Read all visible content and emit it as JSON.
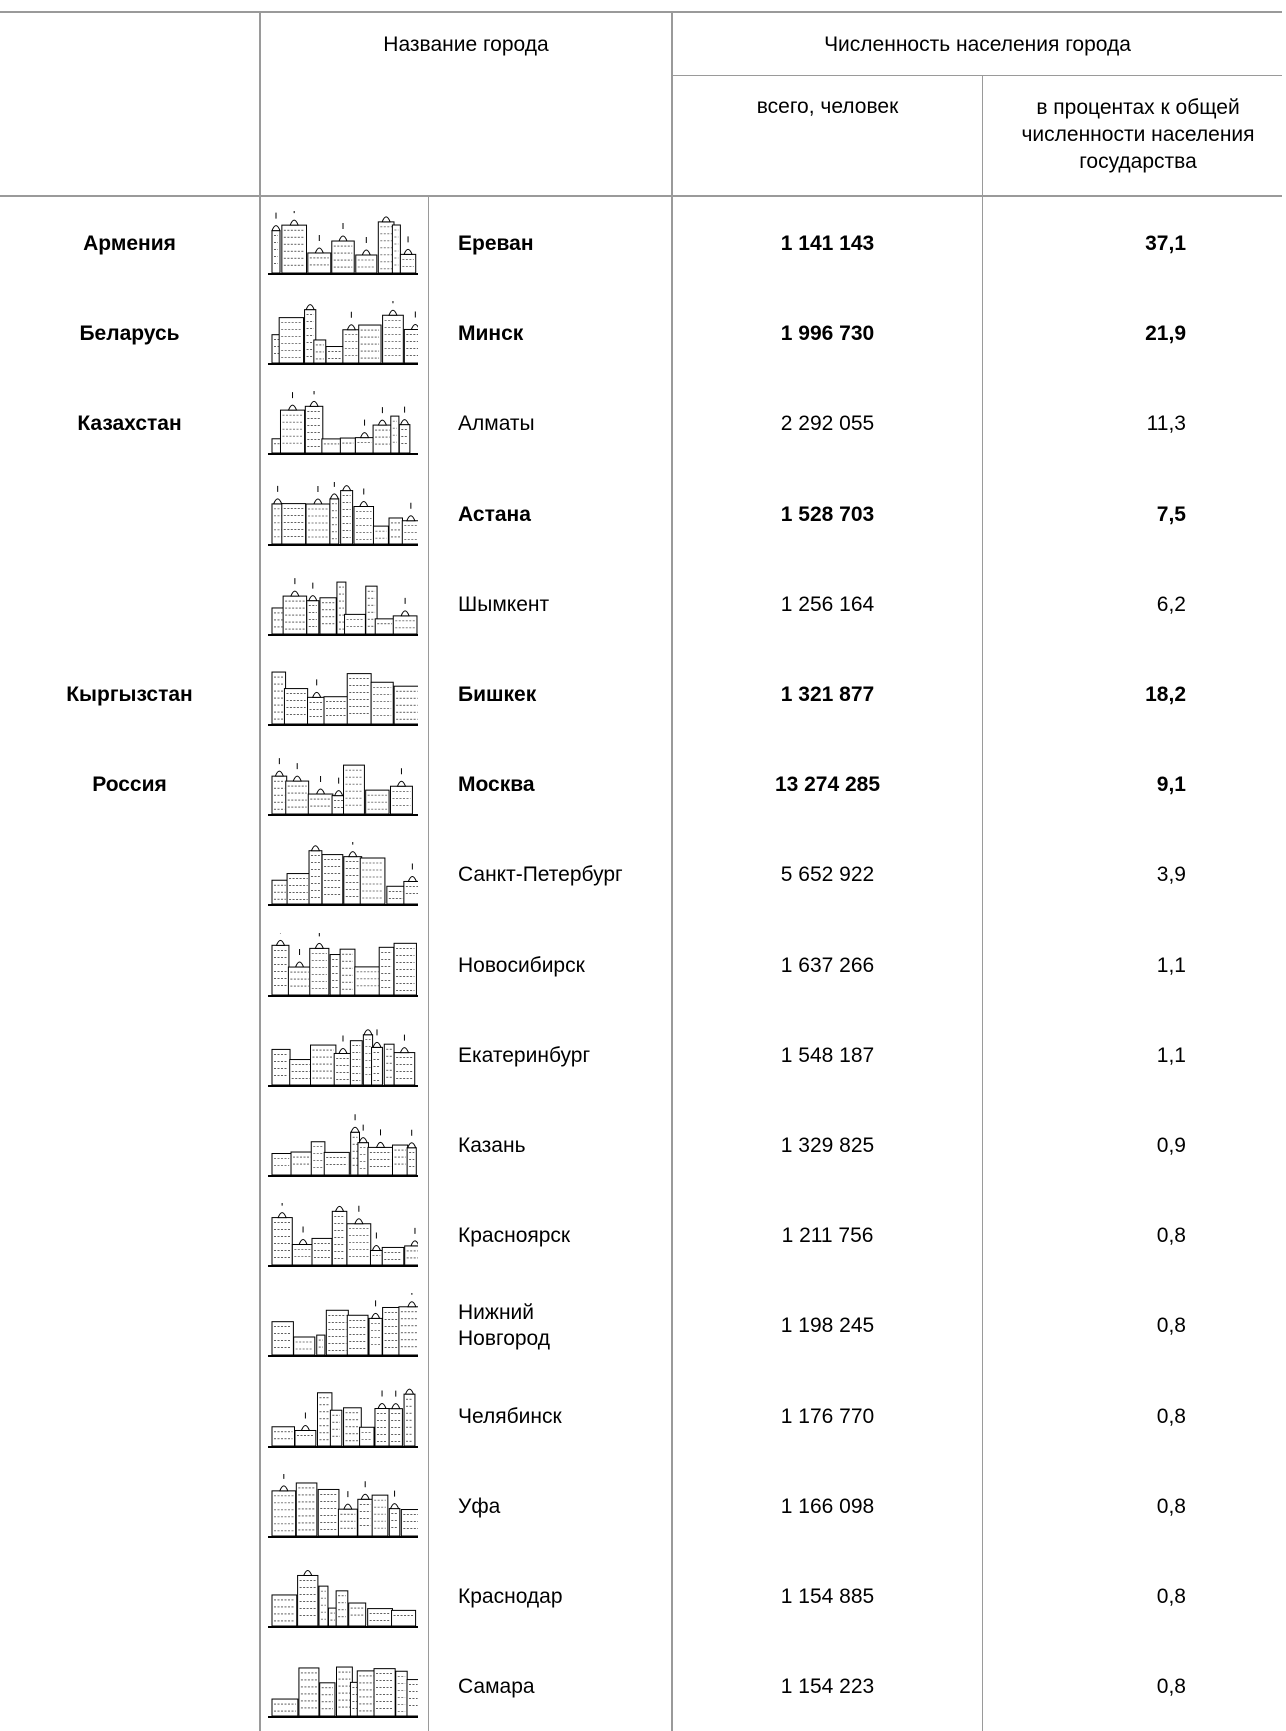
{
  "header": {
    "city_name": "Название города",
    "population": "Численность населения города",
    "total": "всего, человек",
    "percent": "в процентах к общей численности населения государства"
  },
  "table": {
    "rows": [
      {
        "country": "Армения",
        "city": "Ереван",
        "total": "1 141 143",
        "percent": "37,1",
        "bold": true
      },
      {
        "country": "Беларусь",
        "city": "Минск",
        "total": "1 996 730",
        "percent": "21,9",
        "bold": true
      },
      {
        "country": "Казахстан",
        "city": "Алматы",
        "total": "2 292 055",
        "percent": "11,3",
        "bold": false
      },
      {
        "city": "Астана",
        "total": "1 528 703",
        "percent": "7,5",
        "bold": true
      },
      {
        "city": "Шымкент",
        "total": "1 256 164",
        "percent": "6,2",
        "bold": false
      },
      {
        "country": "Кыргызстан",
        "city": "Бишкек",
        "total": "1 321 877",
        "percent": "18,2",
        "bold": true
      },
      {
        "country": "Россия",
        "city": "Москва",
        "total": "13 274 285",
        "percent": "9,1",
        "bold": true
      },
      {
        "city": "Санкт-Петербург",
        "total": "5 652 922",
        "percent": "3,9",
        "bold": false
      },
      {
        "city": "Новосибирск",
        "total": "1 637 266",
        "percent": "1,1",
        "bold": false
      },
      {
        "city": "Екатеринбург",
        "total": "1 548 187",
        "percent": "1,1",
        "bold": false
      },
      {
        "city": "Казань",
        "total": "1 329 825",
        "percent": "0,9",
        "bold": false
      },
      {
        "city": "Красноярск",
        "total": "1 211 756",
        "percent": "0,8",
        "bold": false
      },
      {
        "city": "Нижний\nНовгород",
        "total": "1 198 245",
        "percent": "0,8",
        "bold": false
      },
      {
        "city": "Челябинск",
        "total": "1 176 770",
        "percent": "0,8",
        "bold": false
      },
      {
        "city": "Уфа",
        "total": "1 166 098",
        "percent": "0,8",
        "bold": false
      },
      {
        "city": "Краснодар",
        "total": "1 154 885",
        "percent": "0,8",
        "bold": false
      },
      {
        "city": "Самара",
        "total": "1 154 223",
        "percent": "0,8",
        "bold": false
      }
    ]
  }
}
